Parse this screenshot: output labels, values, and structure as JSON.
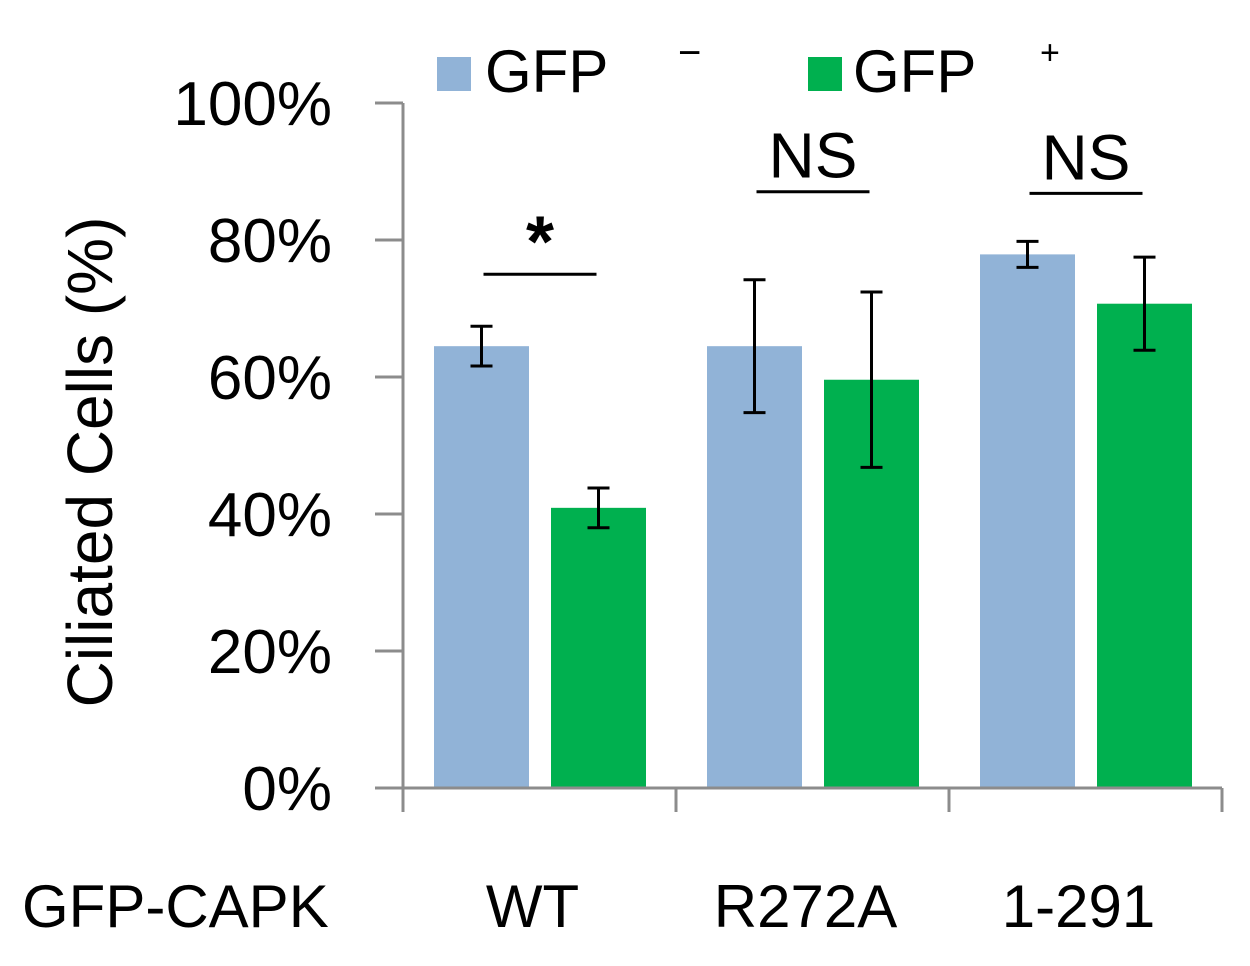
{
  "chart_data": {
    "type": "bar",
    "title": "",
    "ylabel": "Ciliated Cells (%)",
    "xlabel_prefix": "GFP-CAPK",
    "categories": [
      "WT",
      "R272A",
      "1-291"
    ],
    "ylim": [
      0,
      100
    ],
    "yticks": [
      "0%",
      "20%",
      "40%",
      "60%",
      "80%",
      "100%"
    ],
    "ytick_values": [
      0,
      20,
      40,
      60,
      80,
      100
    ],
    "series": [
      {
        "name": "GFP",
        "superscript": "−",
        "color": "#91b3d7",
        "values": [
          64.5,
          64.5,
          77.9
        ],
        "errors": [
          2.9,
          9.7,
          1.9
        ]
      },
      {
        "name": "GFP",
        "superscript": "+",
        "color": "#00b04f",
        "values": [
          40.9,
          59.6,
          70.7
        ],
        "errors": [
          2.9,
          12.8,
          6.8
        ]
      }
    ],
    "significance": [
      "*",
      "NS",
      "NS"
    ],
    "legend_position": "top"
  }
}
